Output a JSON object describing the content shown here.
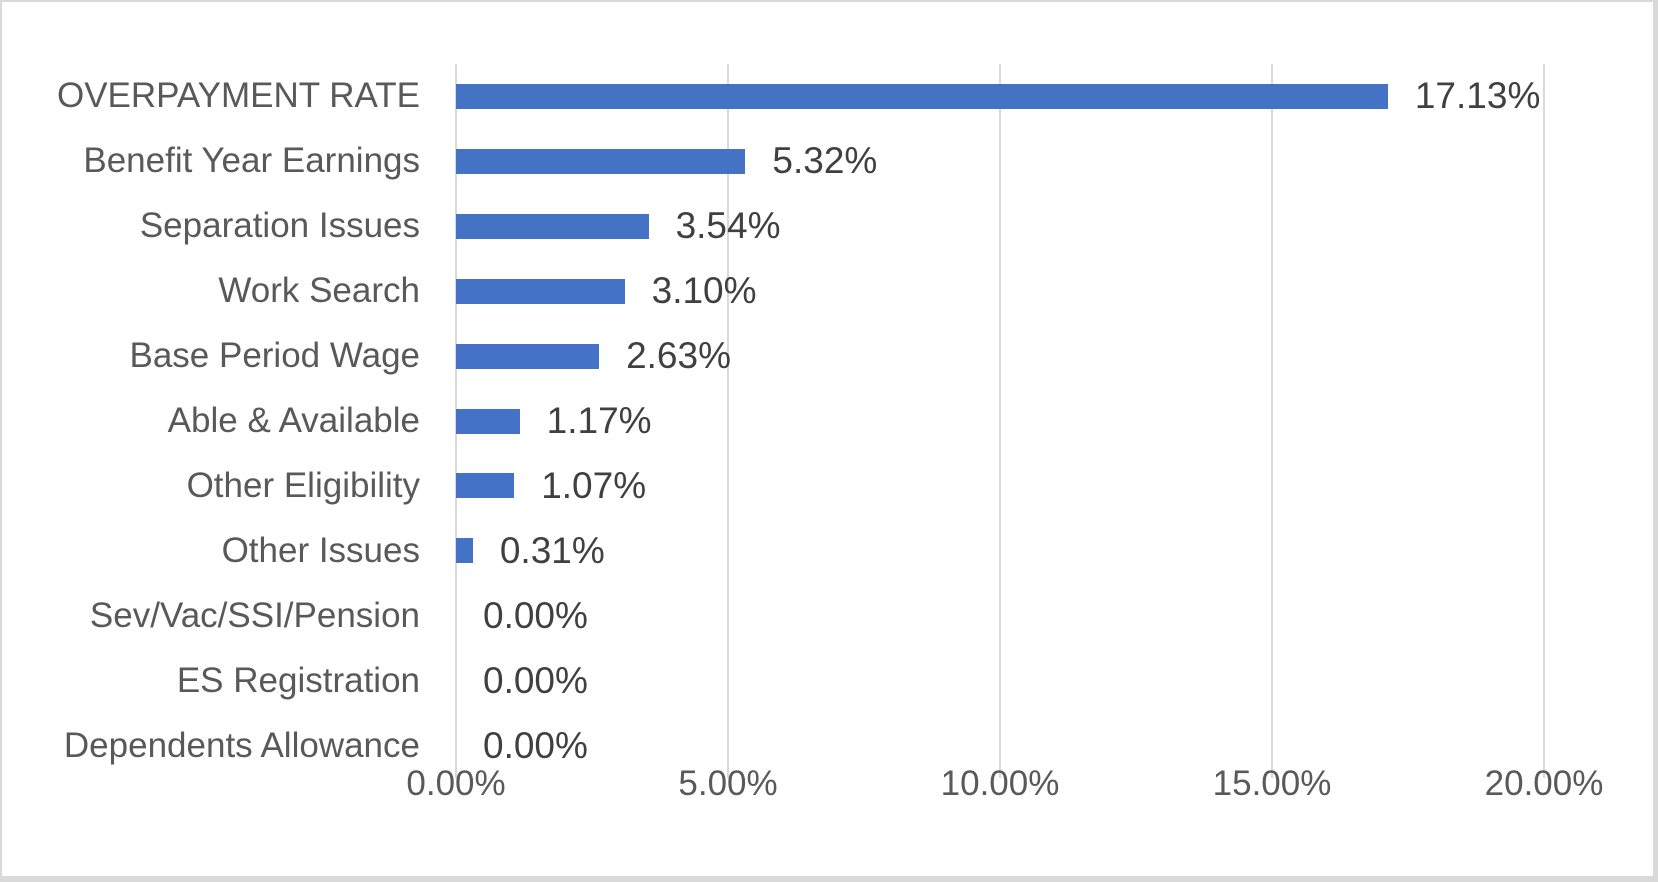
{
  "chart_data": {
    "type": "bar",
    "orientation": "horizontal",
    "title": "",
    "xlabel": "",
    "ylabel": "",
    "categories": [
      "OVERPAYMENT RATE",
      "Benefit Year Earnings",
      "Separation Issues",
      "Work Search",
      "Base Period Wage",
      "Able & Available",
      "Other Eligibility",
      "Other Issues",
      "Sev/Vac/SSI/Pension",
      "ES Registration",
      "Dependents Allowance"
    ],
    "values": [
      17.13,
      5.32,
      3.54,
      3.1,
      2.63,
      1.17,
      1.07,
      0.31,
      0.0,
      0.0,
      0.0
    ],
    "data_labels": [
      "17.13%",
      "5.32%",
      "3.54%",
      "3.10%",
      "2.63%",
      "1.17%",
      "1.07%",
      "0.31%",
      "0.00%",
      "0.00%",
      "0.00%"
    ],
    "x_ticks": [
      "0.00%",
      "5.00%",
      "10.00%",
      "15.00%",
      "20.00%"
    ],
    "x_tick_values": [
      0,
      5,
      10,
      15,
      20
    ],
    "xlim": [
      0,
      20
    ],
    "grid": true,
    "legend": false,
    "bar_color": "#4472C4",
    "gridline_color": "#D9D9D9",
    "category_text_color": "#595959",
    "data_label_text_color": "#404040",
    "background_color": "#FFFFFF",
    "border_color": "#D9D9D9"
  }
}
